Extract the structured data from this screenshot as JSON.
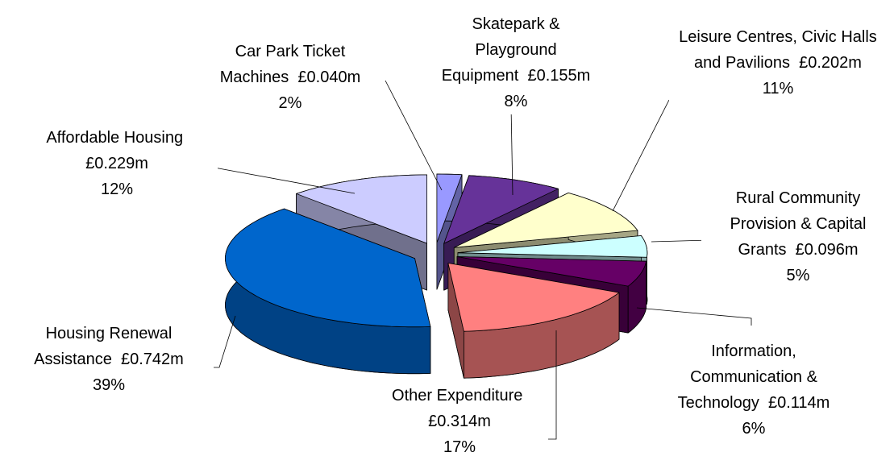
{
  "chart_data": {
    "type": "pie3d",
    "categories": [
      "Car Park Ticket Machines",
      "Skatepark & Playground Equipment",
      "Leisure Centres, Civic Halls and Pavilions",
      "Rural Community Provision & Capital Grants",
      "Information, Communication & Technology",
      "Other Expenditure",
      "Housing Renewal Assistance",
      "Affordable Housing"
    ],
    "values": [
      0.04,
      0.155,
      0.202,
      0.096,
      0.114,
      0.314,
      0.742,
      0.229
    ],
    "value_labels": [
      "£0.040m",
      "£0.155m",
      "£0.202m",
      "£0.096m",
      "£0.114m",
      "£0.314m",
      "£0.742m",
      "£0.229m"
    ],
    "percent_labels": [
      "2%",
      "8%",
      "11%",
      "5%",
      "6%",
      "17%",
      "39%",
      "12%"
    ],
    "colors": [
      "#9999ff",
      "#663399",
      "#ffffcc",
      "#ccffff",
      "#660066",
      "#ff8080",
      "#0066cc",
      "#ccccff"
    ]
  }
}
